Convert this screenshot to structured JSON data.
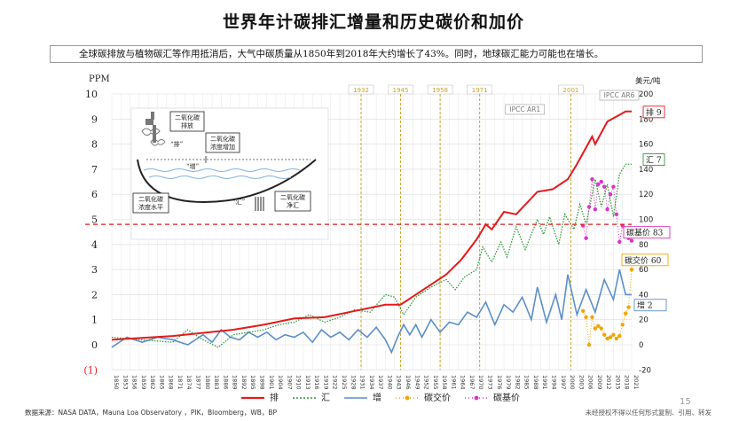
{
  "title": "世界年计碳排汇增量和历史碳价和加价",
  "summary": {
    "bullet": "-",
    "text": "全球碳排放与植物碳汇等作用抵消后，大气中碳质量从1850年到2018年大约增长了43%。同时，地球碳汇能力可能也在增长。"
  },
  "footer": {
    "source": "数据来源：NASA DATA，Mauna Loa Observatory ，PIK，Bloomberg，WB，BP",
    "copyright": "未经授权不得以任何形式复制、引用、转发",
    "page": "15"
  },
  "colors": {
    "emission": "#e41a1c",
    "sink": "#2e9a3a",
    "increase": "#5b8fc9",
    "price": "#f0a500",
    "base_price": "#d933c6",
    "milestone": "#c9a227",
    "threshold": "#e41a1c"
  },
  "chart_data": {
    "type": "line",
    "yaxis_left": {
      "label": "PPM",
      "ticks": [
        "10",
        "9",
        "8",
        "7",
        "6",
        "5",
        "4",
        "3",
        "2",
        "1",
        "0",
        "(1)"
      ],
      "range": [
        -1,
        10
      ]
    },
    "yaxis_right": {
      "label": "美元/吨",
      "ticks": [
        "200",
        "180",
        "160",
        "140",
        "120",
        "100",
        "80",
        "60",
        "40",
        "20",
        "0",
        "-20"
      ],
      "range": [
        -20,
        200
      ]
    },
    "x_range": [
      1850,
      2021
    ],
    "x_tick_labels": [
      "1850",
      "1853",
      "1856",
      "1859",
      "1862",
      "1865",
      "1868",
      "1871",
      "1874",
      "1877",
      "1880",
      "1883",
      "1886",
      "1889",
      "1892",
      "1895",
      "1898",
      "1901",
      "1904",
      "1907",
      "1910",
      "1913",
      "1916",
      "1919",
      "1922",
      "1925",
      "1928",
      "1931",
      "1934",
      "1937",
      "1940",
      "1943",
      "1946",
      "1949",
      "1952",
      "1955",
      "1958",
      "1961",
      "1964",
      "1967",
      "1970",
      "1973",
      "1976",
      "1979",
      "1982",
      "1985",
      "1988",
      "1991",
      "1994",
      "1997",
      "2000",
      "2003",
      "2006",
      "2009",
      "2012",
      "2015",
      "2018",
      "2021"
    ],
    "milestones": [
      {
        "year": 1932,
        "label": "1932"
      },
      {
        "year": 1945,
        "label": "1945"
      },
      {
        "year": 1958,
        "label": "1958"
      },
      {
        "year": 1971,
        "label": "1971"
      },
      {
        "year": 2001,
        "label": "2001"
      }
    ],
    "ipcc_labels": [
      {
        "year": 1990,
        "label": "IPCC AR1"
      },
      {
        "year": 2021,
        "label": "IPCC AR6"
      }
    ],
    "threshold_ppm": 4.8,
    "end_labels": {
      "emission": "排 9",
      "sink": "汇 7",
      "base_price": "碳基价 83",
      "price": "碳交价 60",
      "increase": "增 2"
    },
    "legend": [
      {
        "key": "emission",
        "label": "排"
      },
      {
        "key": "sink",
        "label": "汇"
      },
      {
        "key": "increase",
        "label": "增"
      },
      {
        "key": "price",
        "label": "碳交价"
      },
      {
        "key": "base_price",
        "label": "碳基价"
      }
    ],
    "series": [
      {
        "name": "排",
        "key": "emission",
        "points": [
          [
            1850,
            0.2
          ],
          [
            1870,
            0.35
          ],
          [
            1890,
            0.6
          ],
          [
            1900,
            0.8
          ],
          [
            1910,
            1.05
          ],
          [
            1920,
            1.1
          ],
          [
            1930,
            1.35
          ],
          [
            1940,
            1.6
          ],
          [
            1945,
            1.6
          ],
          [
            1950,
            2.0
          ],
          [
            1955,
            2.4
          ],
          [
            1960,
            2.8
          ],
          [
            1965,
            3.4
          ],
          [
            1970,
            4.2
          ],
          [
            1973,
            4.8
          ],
          [
            1975,
            4.6
          ],
          [
            1979,
            5.3
          ],
          [
            1983,
            5.2
          ],
          [
            1990,
            6.1
          ],
          [
            1995,
            6.2
          ],
          [
            2000,
            6.6
          ],
          [
            2003,
            7.2
          ],
          [
            2008,
            8.3
          ],
          [
            2009,
            8.0
          ],
          [
            2013,
            8.9
          ],
          [
            2016,
            9.1
          ],
          [
            2019,
            9.3
          ],
          [
            2021,
            9.3
          ]
        ]
      },
      {
        "name": "汇",
        "key": "sink",
        "points": [
          [
            1850,
            0.3
          ],
          [
            1860,
            0.2
          ],
          [
            1870,
            0.1
          ],
          [
            1875,
            0.6
          ],
          [
            1880,
            0.2
          ],
          [
            1885,
            -0.1
          ],
          [
            1890,
            0.4
          ],
          [
            1895,
            0.5
          ],
          [
            1900,
            0.6
          ],
          [
            1905,
            0.8
          ],
          [
            1910,
            0.9
          ],
          [
            1915,
            1.2
          ],
          [
            1920,
            0.9
          ],
          [
            1925,
            1.1
          ],
          [
            1930,
            1.4
          ],
          [
            1935,
            1.3
          ],
          [
            1940,
            2.0
          ],
          [
            1943,
            1.9
          ],
          [
            1946,
            1.2
          ],
          [
            1950,
            1.9
          ],
          [
            1955,
            2.3
          ],
          [
            1960,
            2.6
          ],
          [
            1963,
            2.2
          ],
          [
            1966,
            2.7
          ],
          [
            1970,
            3.0
          ],
          [
            1972,
            3.9
          ],
          [
            1975,
            3.3
          ],
          [
            1978,
            4.1
          ],
          [
            1980,
            3.5
          ],
          [
            1983,
            4.7
          ],
          [
            1986,
            3.8
          ],
          [
            1990,
            5.0
          ],
          [
            1992,
            4.4
          ],
          [
            1994,
            5.1
          ],
          [
            1997,
            4.0
          ],
          [
            1999,
            5.2
          ],
          [
            2002,
            4.6
          ],
          [
            2004,
            5.6
          ],
          [
            2006,
            4.8
          ],
          [
            2009,
            6.6
          ],
          [
            2011,
            5.5
          ],
          [
            2013,
            6.4
          ],
          [
            2015,
            5.1
          ],
          [
            2017,
            6.8
          ],
          [
            2019,
            7.2
          ],
          [
            2021,
            7.2
          ]
        ]
      },
      {
        "name": "增",
        "key": "increase",
        "points": [
          [
            1850,
            -0.1
          ],
          [
            1855,
            0.3
          ],
          [
            1860,
            0.1
          ],
          [
            1865,
            0.3
          ],
          [
            1870,
            0.2
          ],
          [
            1875,
            0.0
          ],
          [
            1880,
            0.4
          ],
          [
            1883,
            0.1
          ],
          [
            1886,
            0.6
          ],
          [
            1889,
            0.3
          ],
          [
            1892,
            0.2
          ],
          [
            1895,
            0.5
          ],
          [
            1898,
            0.3
          ],
          [
            1901,
            0.5
          ],
          [
            1904,
            0.2
          ],
          [
            1907,
            0.4
          ],
          [
            1910,
            0.3
          ],
          [
            1913,
            0.5
          ],
          [
            1916,
            0.1
          ],
          [
            1919,
            0.6
          ],
          [
            1922,
            0.3
          ],
          [
            1925,
            0.5
          ],
          [
            1928,
            0.2
          ],
          [
            1931,
            0.6
          ],
          [
            1934,
            0.3
          ],
          [
            1937,
            0.7
          ],
          [
            1940,
            0.2
          ],
          [
            1942,
            -0.3
          ],
          [
            1944,
            0.3
          ],
          [
            1946,
            0.8
          ],
          [
            1948,
            0.4
          ],
          [
            1950,
            0.8
          ],
          [
            1952,
            0.3
          ],
          [
            1955,
            1.0
          ],
          [
            1958,
            0.5
          ],
          [
            1961,
            0.9
          ],
          [
            1964,
            0.8
          ],
          [
            1967,
            1.3
          ],
          [
            1970,
            1.1
          ],
          [
            1973,
            1.7
          ],
          [
            1976,
            0.8
          ],
          [
            1979,
            1.6
          ],
          [
            1982,
            1.3
          ],
          [
            1985,
            1.9
          ],
          [
            1988,
            1.0
          ],
          [
            1990,
            2.3
          ],
          [
            1993,
            0.9
          ],
          [
            1996,
            2.0
          ],
          [
            1998,
            1.0
          ],
          [
            2000,
            2.8
          ],
          [
            2003,
            1.2
          ],
          [
            2006,
            2.2
          ],
          [
            2009,
            1.3
          ],
          [
            2012,
            2.6
          ],
          [
            2015,
            1.8
          ],
          [
            2017,
            3.0
          ],
          [
            2019,
            2.0
          ],
          [
            2021,
            2.0
          ]
        ]
      },
      {
        "name": "碳交价",
        "key": "price",
        "points": [
          [
            2005,
            27
          ],
          [
            2006,
            22
          ],
          [
            2007,
            0
          ],
          [
            2008,
            22
          ],
          [
            2009,
            13
          ],
          [
            2010,
            15
          ],
          [
            2011,
            13
          ],
          [
            2012,
            8
          ],
          [
            2013,
            5
          ],
          [
            2014,
            6
          ],
          [
            2015,
            8
          ],
          [
            2016,
            5
          ],
          [
            2017,
            7
          ],
          [
            2018,
            16
          ],
          [
            2019,
            25
          ],
          [
            2020,
            30
          ],
          [
            2021,
            60
          ]
        ]
      },
      {
        "name": "碳基价",
        "key": "base_price",
        "points": [
          [
            2005,
            95
          ],
          [
            2006,
            85
          ],
          [
            2007,
            110
          ],
          [
            2008,
            132
          ],
          [
            2009,
            108
          ],
          [
            2010,
            128
          ],
          [
            2011,
            130
          ],
          [
            2012,
            126
          ],
          [
            2013,
            108
          ],
          [
            2014,
            120
          ],
          [
            2015,
            126
          ],
          [
            2016,
            104
          ],
          [
            2017,
            82
          ],
          [
            2018,
            95
          ],
          [
            2019,
            88
          ],
          [
            2020,
            85
          ],
          [
            2021,
            83
          ]
        ]
      }
    ]
  }
}
